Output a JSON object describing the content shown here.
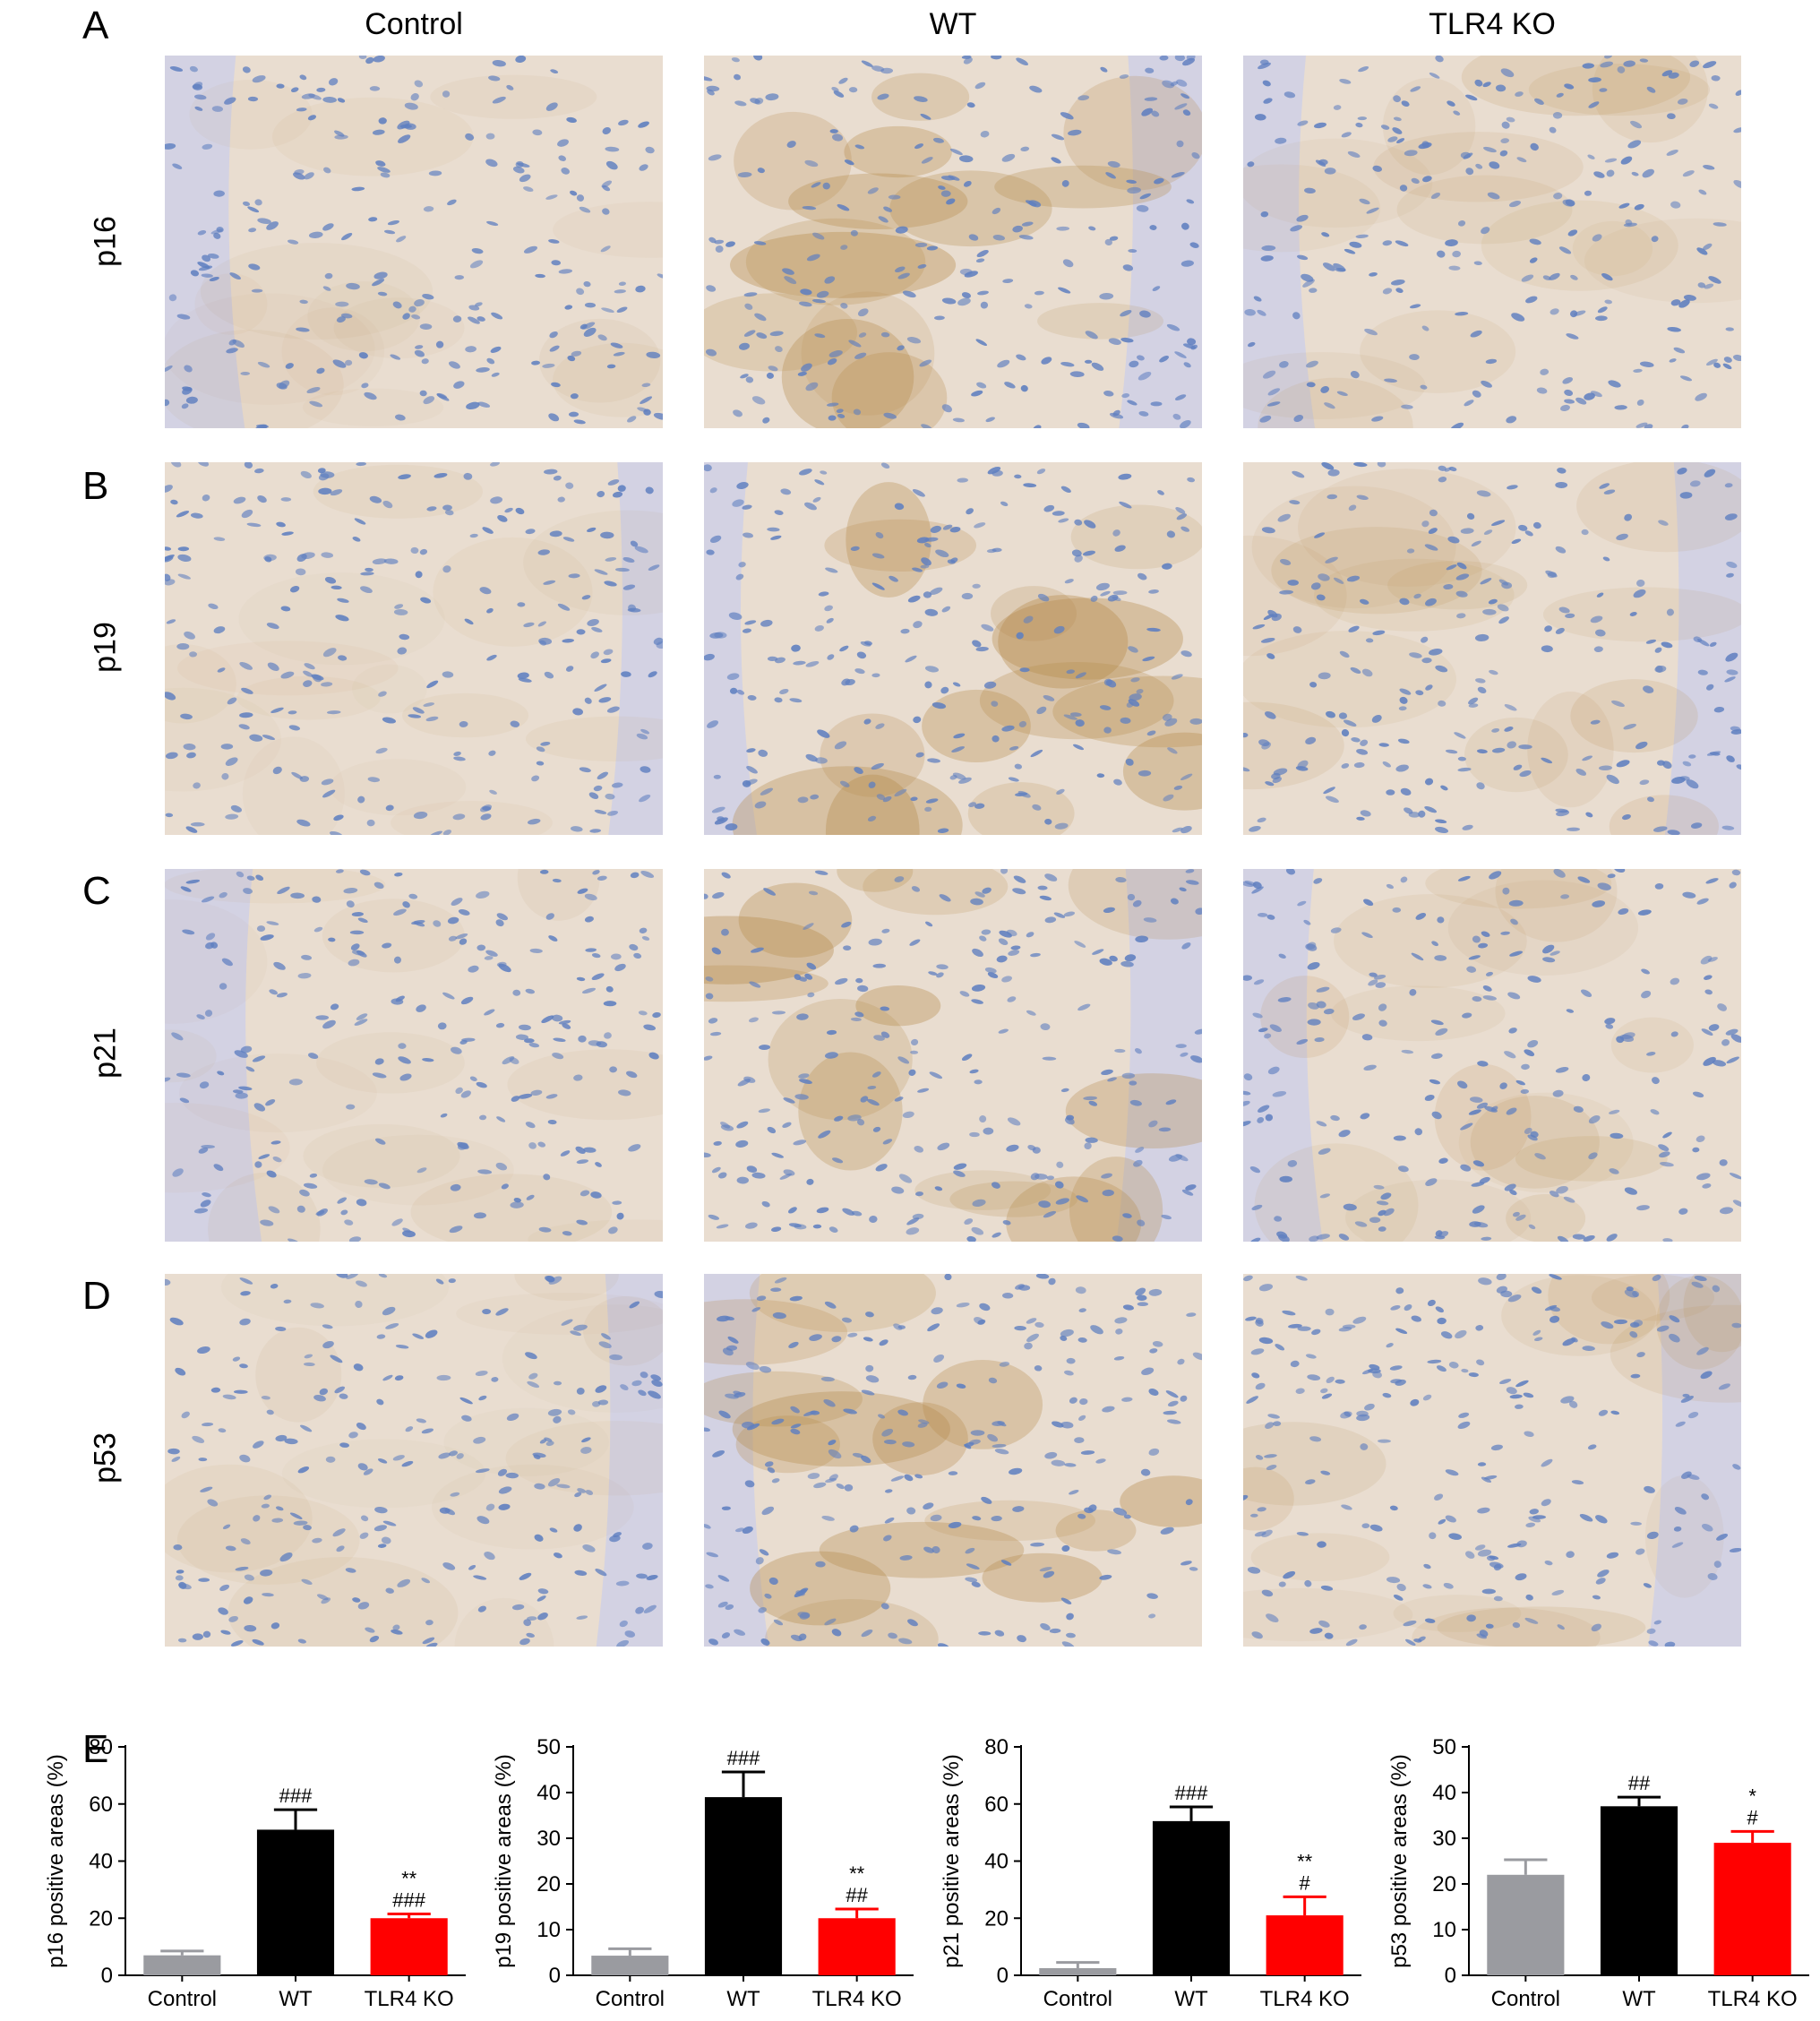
{
  "panels": {
    "A": "A",
    "B": "B",
    "C": "C",
    "D": "D",
    "E": "E"
  },
  "columns": [
    "Control",
    "WT",
    "TLR4 KO"
  ],
  "rows": [
    "p16",
    "p19",
    "p21",
    "p53"
  ],
  "colors": {
    "control": "#9a9ba0",
    "wt": "#000000",
    "tlr4ko": "#ff0000",
    "tissue_bg": "#e9ddd0",
    "nuclei": "#5f7fc0",
    "brown_stain": "#b58a4a",
    "cartilage": "#cfd0e6"
  },
  "chart_data": [
    {
      "type": "bar",
      "categories": [
        "Control",
        "WT",
        "TLR4 KO"
      ],
      "values": [
        7,
        51,
        20
      ],
      "errors": [
        1.5,
        7,
        1.5
      ],
      "annotations": [
        [],
        [
          "###"
        ],
        [
          "**",
          "###"
        ]
      ],
      "ylabel": "p16 positive areas (%)",
      "ylim": [
        0,
        80
      ],
      "yticks": [
        0,
        20,
        40,
        60,
        80
      ]
    },
    {
      "type": "bar",
      "categories": [
        "Control",
        "WT",
        "TLR4 KO"
      ],
      "values": [
        4.3,
        39,
        12.5
      ],
      "errors": [
        1.5,
        5.5,
        2
      ],
      "annotations": [
        [],
        [
          "###"
        ],
        [
          "**",
          "##"
        ]
      ],
      "ylabel": "p19 positive areas (%)",
      "ylim": [
        0,
        50
      ],
      "yticks": [
        0,
        10,
        20,
        30,
        40,
        50
      ]
    },
    {
      "type": "bar",
      "categories": [
        "Control",
        "WT",
        "TLR4 KO"
      ],
      "values": [
        2.5,
        54,
        21
      ],
      "errors": [
        2,
        5,
        6.5
      ],
      "annotations": [
        [],
        [
          "###"
        ],
        [
          "**",
          "#"
        ]
      ],
      "ylabel": "p21 positive areas (%)",
      "ylim": [
        0,
        80
      ],
      "yticks": [
        0,
        20,
        40,
        60,
        80
      ]
    },
    {
      "type": "bar",
      "categories": [
        "Control",
        "WT",
        "TLR4 KO"
      ],
      "values": [
        22,
        37,
        29
      ],
      "errors": [
        3.3,
        2,
        2.5
      ],
      "annotations": [
        [],
        [
          "##"
        ],
        [
          "*",
          "#"
        ]
      ],
      "ylabel": "p53 positive areas (%)",
      "ylim": [
        0,
        50
      ],
      "yticks": [
        0,
        10,
        20,
        30,
        40,
        50
      ]
    }
  ]
}
